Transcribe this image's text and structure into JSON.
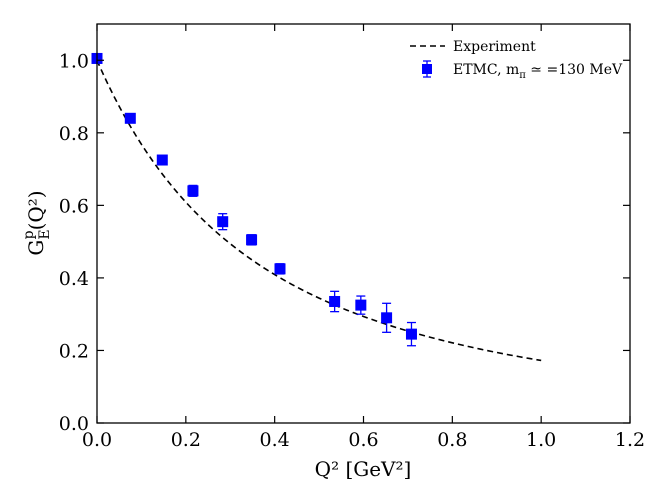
{
  "chart_data": {
    "type": "scatter",
    "xlabel": "Q² [GeV²]",
    "ylabel_main": "G",
    "ylabel_sup": "p",
    "ylabel_sub": "E",
    "ylabel_tail": "(Q²)",
    "xlim": [
      0.0,
      1.2
    ],
    "ylim": [
      0.0,
      1.1
    ],
    "xticks": [
      "0.0",
      "0.2",
      "0.4",
      "0.6",
      "0.8",
      "1.0",
      "1.2"
    ],
    "yticks": [
      "0.0",
      "0.2",
      "0.4",
      "0.6",
      "0.8",
      "1.0"
    ],
    "grid": false,
    "legend_position": "top-right",
    "series": [
      {
        "name": "Experiment",
        "style": "dashed-line",
        "color": "#000000",
        "x_range": [
          0.0,
          1.0
        ]
      },
      {
        "name": "ETMC, m",
        "name_sub": "π",
        "name_tail": " ≃ =130 MeV",
        "style": "square-markers-with-errorbars",
        "color": "#0000ff",
        "x": [
          0.0,
          0.075,
          0.147,
          0.216,
          0.283,
          0.348,
          0.412,
          0.535,
          0.594,
          0.652,
          0.708
        ],
        "y": [
          1.005,
          0.84,
          0.725,
          0.64,
          0.555,
          0.505,
          0.425,
          0.335,
          0.325,
          0.29,
          0.245
        ],
        "yerr": [
          0.004,
          0.008,
          0.01,
          0.015,
          0.022,
          0.014,
          0.014,
          0.028,
          0.025,
          0.04,
          0.032
        ]
      }
    ]
  }
}
